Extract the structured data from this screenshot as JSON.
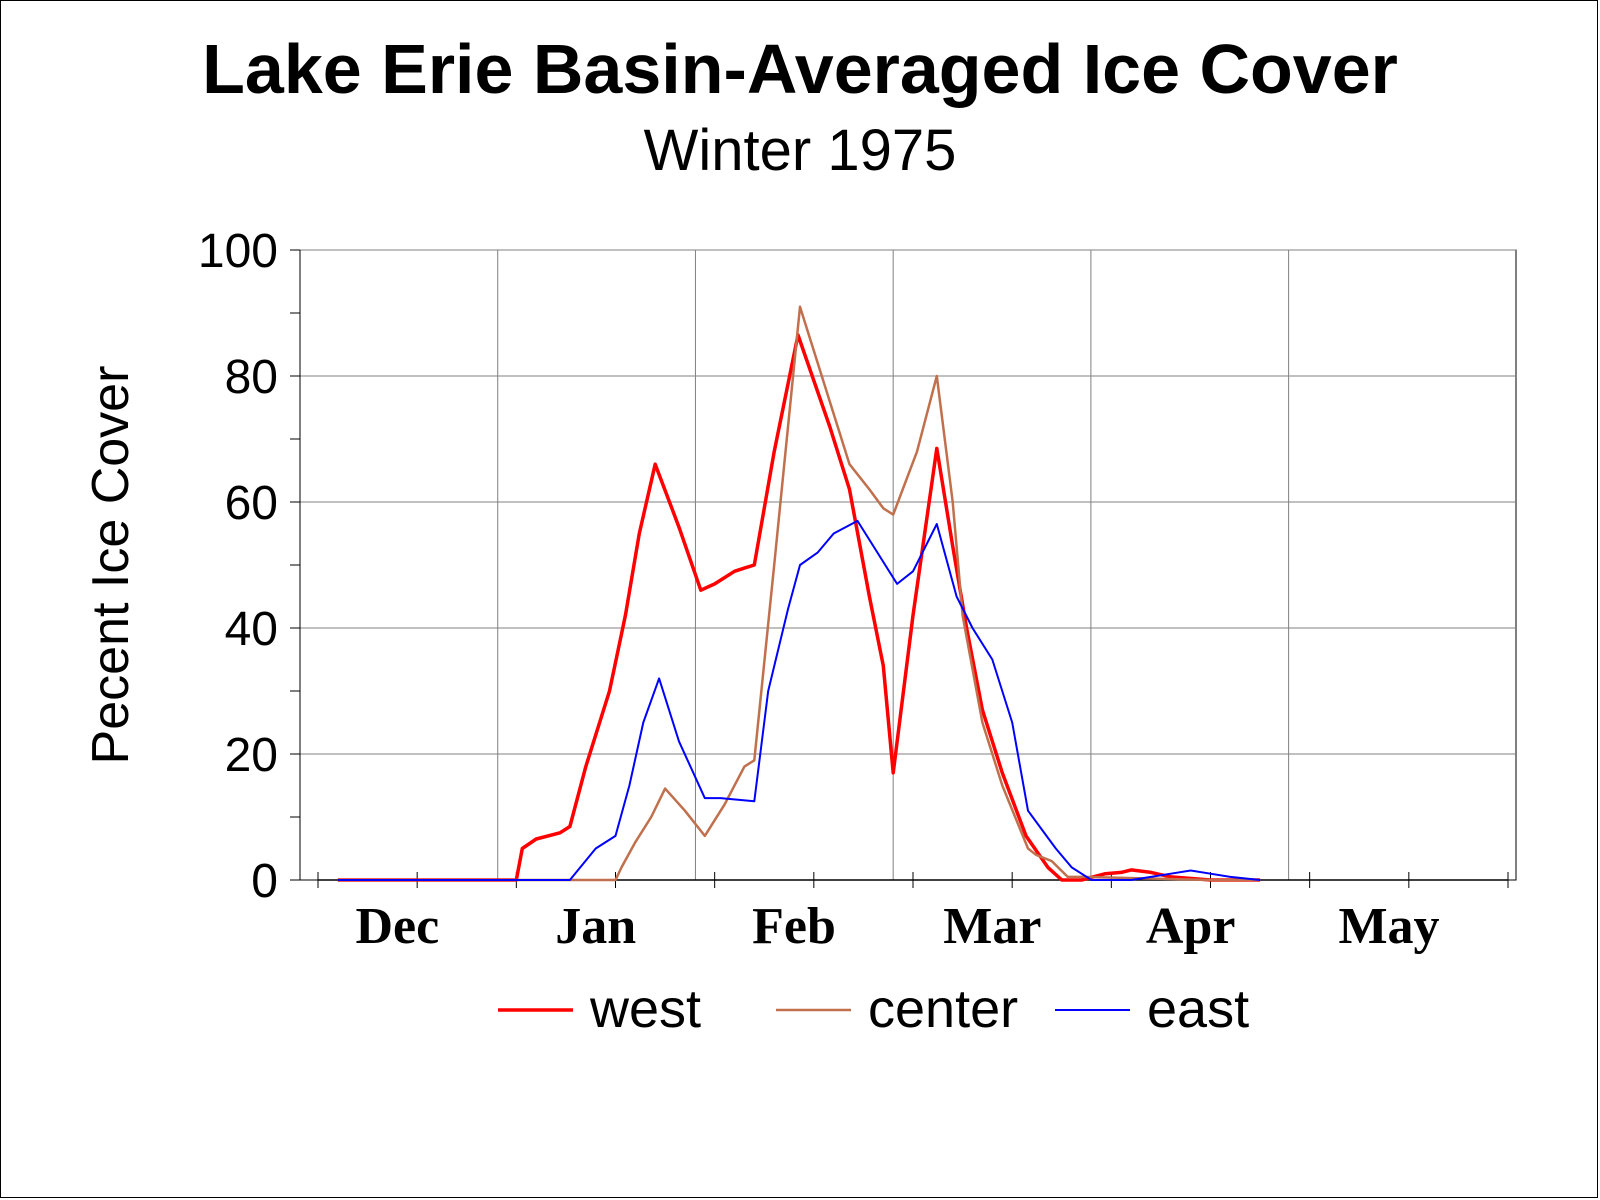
{
  "title": "Lake Erie Basin-Averaged Ice Cover",
  "subtitle": "Winter 1975",
  "chart_data": {
    "type": "line",
    "title": "Lake Erie Basin-Averaged Ice Cover",
    "subtitle": "Winter 1975",
    "ylabel": "Pecent Ice Cover",
    "xlabel": "",
    "ylim": [
      0,
      100
    ],
    "yticks": [
      0,
      20,
      40,
      60,
      80,
      100
    ],
    "xlim": [
      0,
      6
    ],
    "x_unit": "months since start of December",
    "month_labels": [
      "Dec",
      "Jan",
      "Feb",
      "Mar",
      "Apr",
      "May"
    ],
    "grid": true,
    "legend_position": "bottom",
    "series": [
      {
        "name": "west",
        "color": "#ff0000",
        "width": 3.5,
        "points": [
          [
            0.1,
            0
          ],
          [
            1.0,
            0
          ],
          [
            1.03,
            5
          ],
          [
            1.1,
            6.5
          ],
          [
            1.22,
            7.5
          ],
          [
            1.27,
            8.5
          ],
          [
            1.35,
            18
          ],
          [
            1.47,
            30
          ],
          [
            1.55,
            42
          ],
          [
            1.62,
            55
          ],
          [
            1.7,
            66
          ],
          [
            1.82,
            56
          ],
          [
            1.93,
            46
          ],
          [
            2.0,
            47
          ],
          [
            2.1,
            49
          ],
          [
            2.15,
            49.5
          ],
          [
            2.2,
            50
          ],
          [
            2.3,
            68
          ],
          [
            2.42,
            86.5
          ],
          [
            2.58,
            72
          ],
          [
            2.68,
            62
          ],
          [
            2.78,
            45
          ],
          [
            2.85,
            34
          ],
          [
            2.9,
            17
          ],
          [
            3.0,
            42
          ],
          [
            3.12,
            68.5
          ],
          [
            3.2,
            53
          ],
          [
            3.27,
            40
          ],
          [
            3.35,
            27
          ],
          [
            3.45,
            17
          ],
          [
            3.57,
            7
          ],
          [
            3.68,
            2
          ],
          [
            3.75,
            0
          ],
          [
            3.85,
            0
          ],
          [
            3.97,
            1
          ],
          [
            4.05,
            1.2
          ],
          [
            4.1,
            1.6
          ],
          [
            4.2,
            1.2
          ],
          [
            4.3,
            0.5
          ],
          [
            4.5,
            0
          ],
          [
            4.75,
            0
          ]
        ]
      },
      {
        "name": "center",
        "color": "#c0704d",
        "width": 2.5,
        "points": [
          [
            0.1,
            0
          ],
          [
            1.5,
            0
          ],
          [
            1.53,
            2
          ],
          [
            1.6,
            6
          ],
          [
            1.68,
            10
          ],
          [
            1.75,
            14.5
          ],
          [
            1.85,
            11
          ],
          [
            1.95,
            7
          ],
          [
            2.05,
            12
          ],
          [
            2.15,
            18
          ],
          [
            2.2,
            19
          ],
          [
            2.3,
            50
          ],
          [
            2.43,
            91
          ],
          [
            2.58,
            76
          ],
          [
            2.68,
            66
          ],
          [
            2.78,
            62
          ],
          [
            2.85,
            59
          ],
          [
            2.9,
            58
          ],
          [
            3.02,
            68
          ],
          [
            3.12,
            80
          ],
          [
            3.2,
            60
          ],
          [
            3.25,
            42
          ],
          [
            3.35,
            25
          ],
          [
            3.45,
            15
          ],
          [
            3.58,
            5
          ],
          [
            3.62,
            4
          ],
          [
            3.7,
            3
          ],
          [
            3.78,
            0.5
          ],
          [
            3.85,
            0.5
          ],
          [
            4.5,
            0
          ],
          [
            4.75,
            0
          ]
        ]
      },
      {
        "name": "east",
        "color": "#0000ff",
        "width": 2,
        "points": [
          [
            0.1,
            0
          ],
          [
            1.0,
            0
          ],
          [
            1.27,
            0
          ],
          [
            1.4,
            5
          ],
          [
            1.5,
            7
          ],
          [
            1.57,
            15
          ],
          [
            1.64,
            25
          ],
          [
            1.72,
            32
          ],
          [
            1.82,
            22
          ],
          [
            1.95,
            13
          ],
          [
            2.03,
            13
          ],
          [
            2.2,
            12.5
          ],
          [
            2.27,
            30
          ],
          [
            2.37,
            43
          ],
          [
            2.43,
            50
          ],
          [
            2.52,
            52
          ],
          [
            2.6,
            55
          ],
          [
            2.72,
            57
          ],
          [
            2.82,
            52
          ],
          [
            2.92,
            47
          ],
          [
            3.0,
            49
          ],
          [
            3.12,
            56.5
          ],
          [
            3.22,
            45
          ],
          [
            3.3,
            40
          ],
          [
            3.4,
            35
          ],
          [
            3.5,
            25
          ],
          [
            3.58,
            11
          ],
          [
            3.65,
            8
          ],
          [
            3.72,
            5
          ],
          [
            3.8,
            2
          ],
          [
            3.85,
            1
          ],
          [
            3.9,
            0
          ],
          [
            4.1,
            0
          ],
          [
            4.2,
            0.5
          ],
          [
            4.3,
            1
          ],
          [
            4.4,
            1.5
          ],
          [
            4.5,
            1
          ],
          [
            4.6,
            0.5
          ],
          [
            4.75,
            0
          ]
        ]
      }
    ]
  }
}
